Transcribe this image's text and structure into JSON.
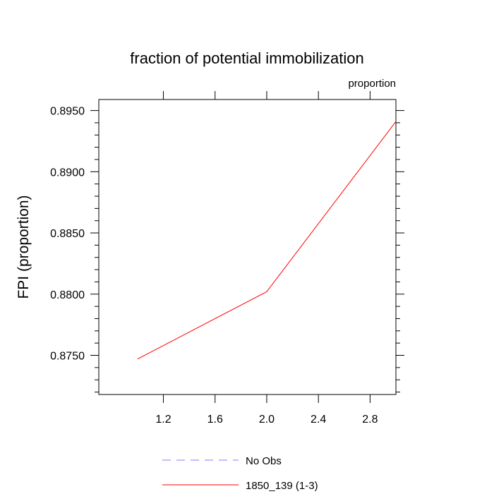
{
  "chart_data": {
    "type": "line",
    "title": "fraction of potential immobilization",
    "units_label": "proportion",
    "ylabel": "FPI  (proportion)",
    "xlabel": "",
    "xlim": [
      0.7,
      3.0
    ],
    "ylim": [
      0.8718,
      0.8959
    ],
    "x_ticks": [
      1.2,
      1.6,
      2.0,
      2.4,
      2.8
    ],
    "x_tick_labels": [
      "1.2",
      "1.6",
      "2.0",
      "2.4",
      "2.8"
    ],
    "y_ticks": [
      0.875,
      0.88,
      0.885,
      0.89,
      0.895
    ],
    "y_tick_labels": [
      "0.8750",
      "0.8800",
      "0.8850",
      "0.8900",
      "0.8950"
    ],
    "grid": false,
    "legend_position": "bottom",
    "series": [
      {
        "name": "1850_139 (1-3)",
        "color": "#ff0000",
        "dash": "solid",
        "x": [
          1.0,
          2.0,
          3.0
        ],
        "values": [
          0.8747,
          0.8802,
          0.8941
        ]
      }
    ],
    "legend": [
      {
        "label": "No Obs",
        "color": "#7f7fff",
        "dash": "dashed"
      },
      {
        "label": "1850_139 (1-3)",
        "color": "#ff0000",
        "dash": "solid"
      }
    ]
  }
}
